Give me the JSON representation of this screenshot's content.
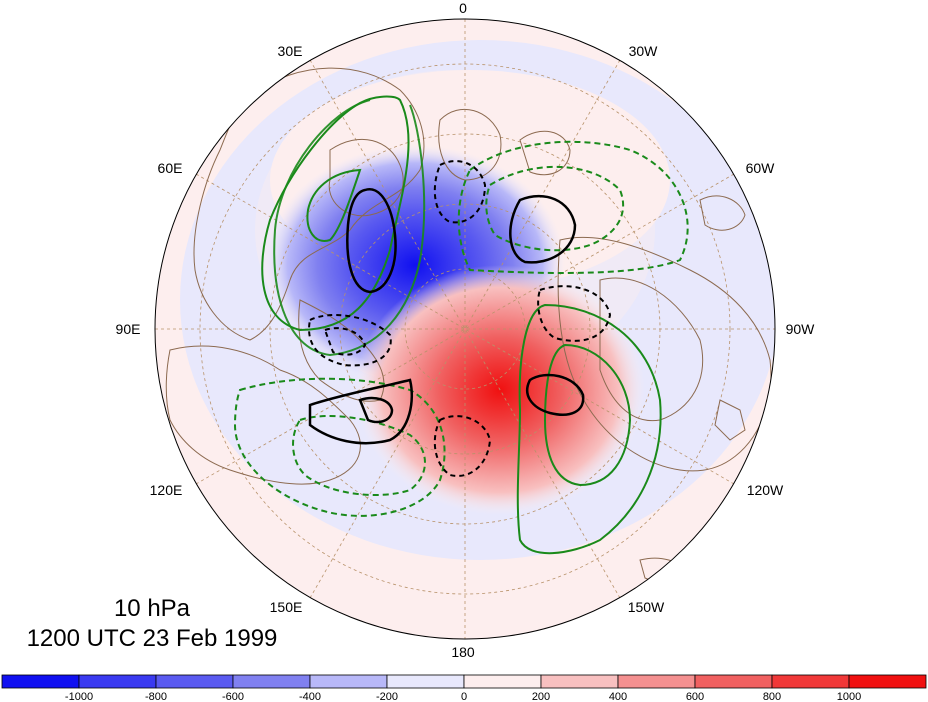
{
  "title": {
    "level": "10 hPa",
    "time": "1200 UTC 23 Feb 1999"
  },
  "longitude_labels": {
    "top": "0",
    "bottom": "180",
    "left": "90E",
    "right": "90W",
    "upper_left_1": "30E",
    "upper_left_2": "60E",
    "upper_right_1": "30W",
    "upper_right_2": "60W",
    "lower_left_1": "120E",
    "lower_left_2": "150E",
    "lower_right_1": "120W",
    "lower_right_2": "150W"
  },
  "colorbar": {
    "colors": [
      "#1010f0",
      "#3a3af0",
      "#5a5af0",
      "#8080f0",
      "#b8b8f8",
      "#e8e8fc",
      "#fdeeee",
      "#f8c0c0",
      "#f49090",
      "#f06060",
      "#f03838",
      "#f01010"
    ],
    "labels": [
      "-1000",
      "-800",
      "-600",
      "-400",
      "-200",
      "0",
      "200",
      "400",
      "600",
      "800",
      "1000"
    ]
  },
  "legend_colors": {
    "negative_max": "#1010f0",
    "positive_max": "#f01010",
    "contour_a": "#000000",
    "contour_b": "#1a8a1a",
    "continents": "#8c6a50",
    "graticule": "#b8926a"
  }
}
